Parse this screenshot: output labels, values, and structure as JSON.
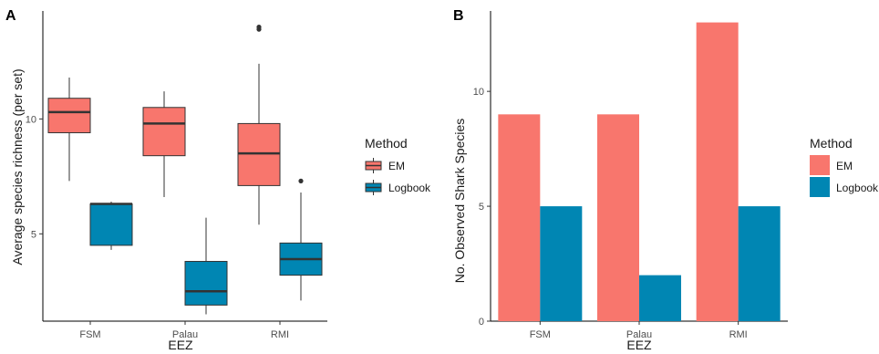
{
  "chart_data": [
    {
      "panel": "A",
      "type": "boxplot",
      "xlabel": "EEZ",
      "ylabel": "Average species richness (per set)",
      "categories": [
        "FSM",
        "Palau",
        "RMI"
      ],
      "yticks": [
        5,
        10
      ],
      "ylim": [
        1.2,
        14.7
      ],
      "grid": false,
      "legend": {
        "title": "Method",
        "position": "right",
        "entries": [
          {
            "label": "EM",
            "color": "#F8766D"
          },
          {
            "label": "Logbook",
            "color": "#0086B3"
          }
        ]
      },
      "series": [
        {
          "name": "EM",
          "color": "#F8766D",
          "boxes": [
            {
              "category": "FSM",
              "min": 7.3,
              "q1": 9.4,
              "median": 10.3,
              "q3": 10.9,
              "max": 11.8,
              "outliers": []
            },
            {
              "category": "Palau",
              "min": 6.6,
              "q1": 8.4,
              "median": 9.8,
              "q3": 10.5,
              "max": 11.2,
              "outliers": []
            },
            {
              "category": "RMI",
              "min": 5.4,
              "q1": 7.1,
              "median": 8.5,
              "q3": 9.8,
              "max": 12.4,
              "outliers": [
                13.9,
                14.0
              ]
            }
          ]
        },
        {
          "name": "Logbook",
          "color": "#0086B3",
          "boxes": [
            {
              "category": "FSM",
              "min": 4.3,
              "q1": 4.5,
              "median": 6.3,
              "q3": 6.3,
              "max": 6.4,
              "outliers": []
            },
            {
              "category": "Palau",
              "min": 1.5,
              "q1": 1.9,
              "median": 2.5,
              "q3": 3.8,
              "max": 5.7,
              "outliers": []
            },
            {
              "category": "RMI",
              "min": 2.1,
              "q1": 3.2,
              "median": 3.9,
              "q3": 4.6,
              "max": 6.8,
              "outliers": [
                7.3
              ]
            }
          ]
        }
      ]
    },
    {
      "panel": "B",
      "type": "bar",
      "xlabel": "EEZ",
      "ylabel": "No. Observed Shark Species",
      "categories": [
        "FSM",
        "Palau",
        "RMI"
      ],
      "yticks": [
        0,
        5,
        10
      ],
      "ylim": [
        0,
        13.5
      ],
      "grid": false,
      "legend": {
        "title": "Method",
        "position": "right",
        "entries": [
          {
            "label": "EM",
            "color": "#F8766D"
          },
          {
            "label": "Logbook",
            "color": "#0086B3"
          }
        ]
      },
      "series": [
        {
          "name": "EM",
          "color": "#F8766D",
          "values": [
            9,
            9,
            13
          ]
        },
        {
          "name": "Logbook",
          "color": "#0086B3",
          "values": [
            5,
            2,
            5
          ]
        }
      ]
    }
  ]
}
